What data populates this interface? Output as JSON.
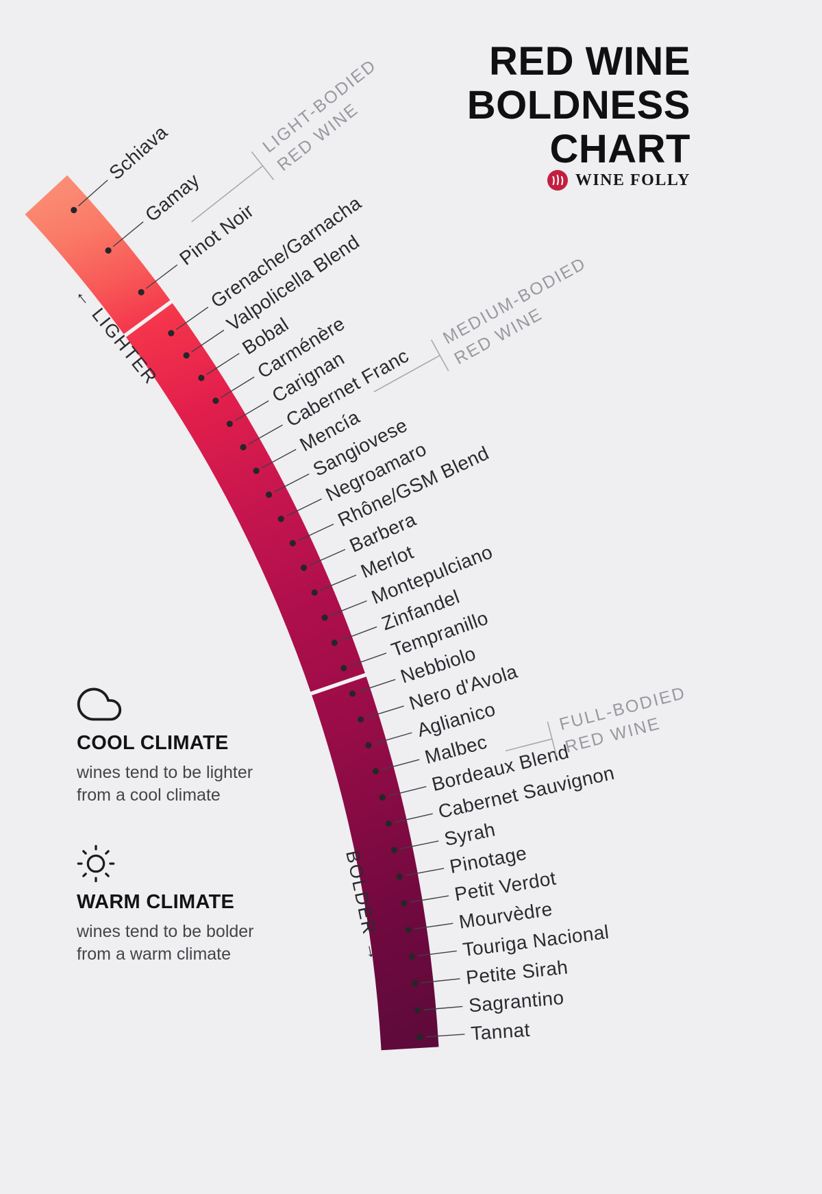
{
  "title": {
    "line1": "RED WINE",
    "line2": "BOLDNESS",
    "line3": "CHART"
  },
  "brand": {
    "name": "WINE FOLLY"
  },
  "axis": {
    "lighter": "← LIGHTER",
    "bolder": "BOLDER →"
  },
  "sections": [
    {
      "line1": "LIGHT-BODIED",
      "line2": "RED WINE"
    },
    {
      "line1": "MEDIUM-BODIED",
      "line2": "RED WINE"
    },
    {
      "line1": "FULL-BODIED",
      "line2": "RED WINE"
    }
  ],
  "wines": [
    "Schiava",
    "Gamay",
    "Pinot Noir",
    "Grenache/Garnacha",
    "Valpolicella Blend",
    "Bobal",
    "Carménère",
    "Carignan",
    "Cabernet Franc",
    "Mencía",
    "Sangiovese",
    "Negroamaro",
    "Rhône/GSM Blend",
    "Barbera",
    "Merlot",
    "Montepulciano",
    "Zinfandel",
    "Tempranillo",
    "Nebbiolo",
    "Nero d'Avola",
    "Aglianico",
    "Malbec",
    "Bordeaux Blend",
    "Cabernet Sauvignon",
    "Syrah",
    "Pinotage",
    "Petit Verdot",
    "Mourvèdre",
    "Touriga Nacional",
    "Petite Sirah",
    "Sagrantino",
    "Tannat"
  ],
  "climate": {
    "cool": {
      "icon": "cloud",
      "title": "COOL CLIMATE",
      "desc": "wines tend to be lighter\nfrom a cool climate"
    },
    "warm": {
      "icon": "sun",
      "title": "WARM CLIMATE",
      "desc": "wines tend to be bolder\nfrom a warm climate"
    }
  },
  "colors": {
    "background": "#EFEEF1",
    "label_ink": "#2b2b2f",
    "muted_gray": "#99989e",
    "logo_red": "#C21F40",
    "gradient": [
      "#FB8E76",
      "#FA7A67",
      "#F85A58",
      "#F4344B",
      "#E21F4C",
      "#C6154E",
      "#AE0F4C",
      "#A20D49",
      "#8B0B45",
      "#71093F",
      "#5C0A3A"
    ]
  },
  "chart_data": {
    "type": "table",
    "title": "Red Wine Boldness Chart",
    "ordering": "lightest to boldest along the arc",
    "axis": {
      "from": "Lighter",
      "to": "Bolder"
    },
    "groups": [
      {
        "body": "Light-Bodied Red Wine",
        "wines": [
          "Schiava",
          "Gamay",
          "Pinot Noir"
        ]
      },
      {
        "body": "Medium-Bodied Red Wine",
        "wines": [
          "Grenache/Garnacha",
          "Valpolicella Blend",
          "Bobal",
          "Carménère",
          "Carignan",
          "Cabernet Franc",
          "Mencía",
          "Sangiovese",
          "Negroamaro",
          "Rhône/GSM Blend",
          "Barbera",
          "Merlot",
          "Montepulciano",
          "Zinfandel",
          "Tempranillo"
        ]
      },
      {
        "body": "Full-Bodied Red Wine",
        "wines": [
          "Nebbiolo",
          "Nero d'Avola",
          "Aglianico",
          "Malbec",
          "Bordeaux Blend",
          "Cabernet Sauvignon",
          "Syrah",
          "Pinotage",
          "Petit Verdot",
          "Mourvèdre",
          "Touriga Nacional",
          "Petite Sirah",
          "Sagrantino",
          "Tannat"
        ]
      }
    ],
    "notes": [
      "wines tend to be lighter from a cool climate",
      "wines tend to be bolder from a warm climate"
    ]
  }
}
